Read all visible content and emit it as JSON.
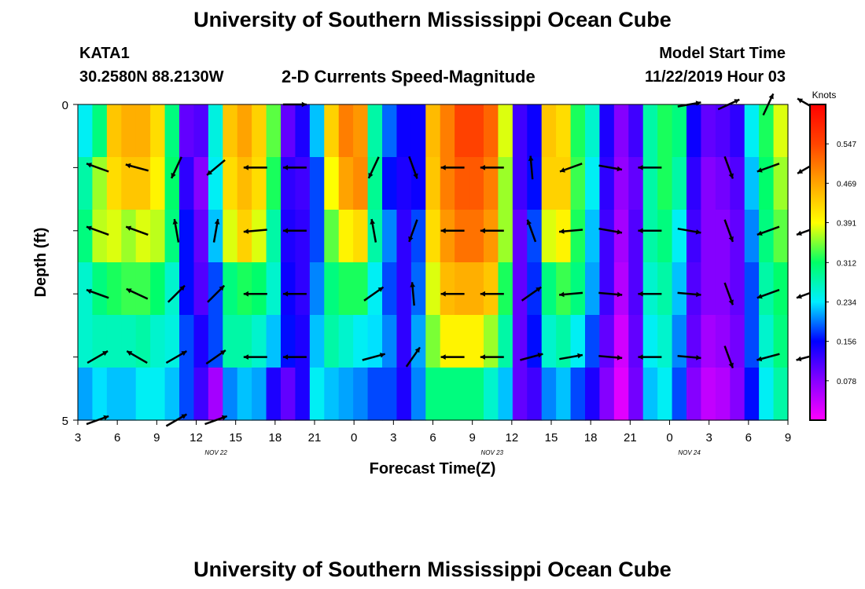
{
  "page": {
    "title_top": "University of Southern Mississippi Ocean Cube",
    "title_bottom": "University of Southern Mississippi Ocean Cube",
    "station_id": "KATA1",
    "station_coords": "30.2580N 88.2130W",
    "subtitle": "2-D Currents Speed-Magnitude",
    "model_start_label": "Model Start Time",
    "model_start_value": "11/22/2019 Hour 03"
  },
  "chart_data": {
    "type": "heatmap",
    "title": "2-D Currents Speed-Magnitude",
    "xlabel": "Forecast Time(Z)",
    "ylabel": "Depth (ft)",
    "ylim": [
      0,
      5
    ],
    "y_tick_labels": [
      "0",
      "5"
    ],
    "x_tick_labels": [
      "3",
      "6",
      "9",
      "12",
      "15",
      "18",
      "21",
      "0",
      "3",
      "6",
      "9",
      "12",
      "15",
      "18",
      "21",
      "0",
      "3",
      "6",
      "9"
    ],
    "date_labels": [
      {
        "text": "NOV  22",
        "at_tick": 3.5
      },
      {
        "text": "NOV  23",
        "at_tick": 10.5
      },
      {
        "text": "NOV  24",
        "at_tick": 15.5
      }
    ],
    "colorbar": {
      "units": "Knots",
      "range": [
        0.0,
        0.625
      ],
      "tick_values": [
        0.547,
        0.469,
        0.391,
        0.312,
        0.234,
        0.156,
        0.078
      ],
      "tick_labels": [
        "0.547",
        "0.469",
        "0.391",
        "0.312",
        "0.234",
        "0.156",
        "0.078"
      ],
      "colors": [
        "#ff00ff",
        "#8800ff",
        "#0000ff",
        "#00eeff",
        "#00ff66",
        "#ffff00",
        "#ffa500",
        "#ff4400",
        "#ff0000"
      ]
    },
    "speed_grid_knots": [
      [
        0.24,
        0.3,
        0.44,
        0.46,
        0.46,
        0.42,
        0.3,
        0.1,
        0.11,
        0.25,
        0.44,
        0.47,
        0.43,
        0.34,
        0.1,
        0.14,
        0.22,
        0.43,
        0.5,
        0.48,
        0.28,
        0.19,
        0.15,
        0.15,
        0.45,
        0.5,
        0.55,
        0.55,
        0.52,
        0.38,
        0.12,
        0.15,
        0.44,
        0.42,
        0.32,
        0.26,
        0.14,
        0.08,
        0.12,
        0.28,
        0.32,
        0.3,
        0.15,
        0.1,
        0.11,
        0.13,
        0.24,
        0.32,
        0.38
      ],
      [
        0.28,
        0.36,
        0.42,
        0.44,
        0.44,
        0.4,
        0.31,
        0.13,
        0.08,
        0.24,
        0.42,
        0.45,
        0.42,
        0.32,
        0.13,
        0.12,
        0.18,
        0.39,
        0.47,
        0.49,
        0.29,
        0.16,
        0.14,
        0.15,
        0.44,
        0.5,
        0.53,
        0.53,
        0.5,
        0.36,
        0.12,
        0.16,
        0.43,
        0.43,
        0.33,
        0.24,
        0.13,
        0.07,
        0.1,
        0.28,
        0.32,
        0.28,
        0.13,
        0.08,
        0.09,
        0.11,
        0.22,
        0.31,
        0.36
      ],
      [
        0.3,
        0.37,
        0.38,
        0.36,
        0.38,
        0.37,
        0.3,
        0.16,
        0.1,
        0.22,
        0.38,
        0.43,
        0.38,
        0.28,
        0.14,
        0.13,
        0.18,
        0.34,
        0.4,
        0.42,
        0.28,
        0.2,
        0.13,
        0.18,
        0.42,
        0.48,
        0.51,
        0.51,
        0.48,
        0.36,
        0.1,
        0.18,
        0.38,
        0.4,
        0.32,
        0.22,
        0.12,
        0.06,
        0.11,
        0.28,
        0.3,
        0.24,
        0.12,
        0.08,
        0.08,
        0.1,
        0.2,
        0.3,
        0.34
      ],
      [
        0.26,
        0.3,
        0.32,
        0.33,
        0.33,
        0.31,
        0.26,
        0.16,
        0.11,
        0.18,
        0.3,
        0.32,
        0.31,
        0.26,
        0.15,
        0.13,
        0.2,
        0.3,
        0.32,
        0.32,
        0.24,
        0.18,
        0.13,
        0.19,
        0.38,
        0.45,
        0.46,
        0.46,
        0.44,
        0.32,
        0.1,
        0.17,
        0.3,
        0.33,
        0.3,
        0.21,
        0.12,
        0.05,
        0.11,
        0.26,
        0.28,
        0.22,
        0.11,
        0.08,
        0.08,
        0.1,
        0.18,
        0.28,
        0.31
      ],
      [
        0.26,
        0.27,
        0.27,
        0.27,
        0.28,
        0.26,
        0.25,
        0.18,
        0.14,
        0.18,
        0.28,
        0.28,
        0.26,
        0.22,
        0.16,
        0.14,
        0.22,
        0.28,
        0.26,
        0.24,
        0.23,
        0.2,
        0.13,
        0.21,
        0.35,
        0.4,
        0.4,
        0.4,
        0.36,
        0.28,
        0.1,
        0.16,
        0.26,
        0.28,
        0.24,
        0.18,
        0.1,
        0.03,
        0.1,
        0.24,
        0.26,
        0.2,
        0.1,
        0.06,
        0.07,
        0.09,
        0.18,
        0.26,
        0.3
      ],
      [
        0.21,
        0.23,
        0.22,
        0.22,
        0.24,
        0.24,
        0.22,
        0.18,
        0.12,
        0.06,
        0.2,
        0.22,
        0.21,
        0.14,
        0.1,
        0.14,
        0.24,
        0.22,
        0.21,
        0.2,
        0.18,
        0.18,
        0.14,
        0.2,
        0.3,
        0.3,
        0.3,
        0.3,
        0.26,
        0.22,
        0.1,
        0.12,
        0.2,
        0.22,
        0.18,
        0.14,
        0.08,
        0.02,
        0.09,
        0.22,
        0.24,
        0.18,
        0.08,
        0.04,
        0.05,
        0.08,
        0.16,
        0.24,
        0.28
      ]
    ],
    "speed_grid_note": "rows = depth layers from 0 ft (top) to 5 ft (bottom); columns = forecast hours 3Z Nov 22 through 9Z Nov 24 (hourly)",
    "arrow_rows": [
      {
        "depth_ft": 0.0,
        "angles_deg": [
          null,
          null,
          null,
          null,
          null,
          0,
          null,
          null,
          null,
          null,
          null,
          null,
          null,
          null,
          null,
          -10,
          -25,
          -65,
          -150
        ]
      },
      {
        "depth_ft": 1.0,
        "angles_deg": [
          -160,
          -165,
          115,
          140,
          180,
          180,
          null,
          115,
          70,
          180,
          180,
          -95,
          160,
          10,
          180,
          null,
          70,
          160,
          150
        ]
      },
      {
        "depth_ft": 2.0,
        "angles_deg": [
          -160,
          -160,
          -100,
          -80,
          175,
          180,
          null,
          -100,
          110,
          180,
          180,
          -110,
          175,
          10,
          180,
          10,
          70,
          160,
          160
        ]
      },
      {
        "depth_ft": 3.0,
        "angles_deg": [
          -160,
          -155,
          -45,
          -45,
          180,
          180,
          null,
          -35,
          -95,
          180,
          180,
          -35,
          175,
          5,
          180,
          5,
          70,
          160,
          160
        ]
      },
      {
        "depth_ft": 4.0,
        "angles_deg": [
          -30,
          -150,
          -30,
          -35,
          180,
          180,
          null,
          -15,
          -55,
          180,
          180,
          -15,
          -10,
          5,
          180,
          5,
          70,
          165,
          165
        ]
      },
      {
        "depth_ft": 5.0,
        "angles_deg": [
          -20,
          null,
          -30,
          -20,
          null,
          null,
          null,
          null,
          null,
          null,
          null,
          null,
          null,
          null,
          null,
          null,
          null,
          null,
          null
        ]
      }
    ]
  }
}
